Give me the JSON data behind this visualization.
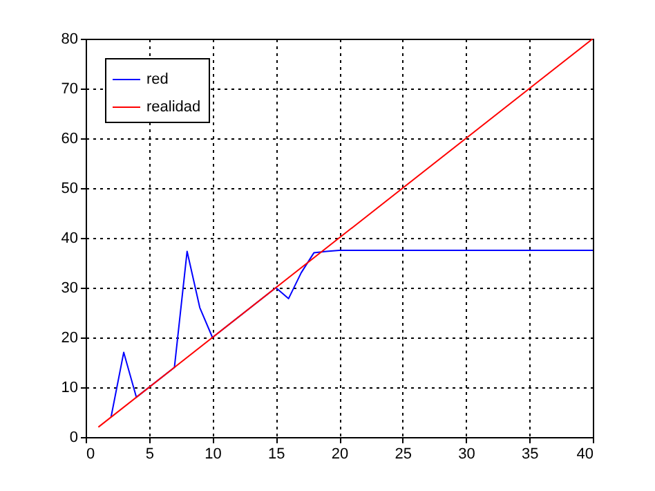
{
  "chart_data": {
    "type": "line",
    "xlim": [
      0,
      40
    ],
    "ylim": [
      0,
      80
    ],
    "xticks": [
      0,
      5,
      10,
      15,
      20,
      25,
      30,
      35,
      40
    ],
    "yticks": [
      0,
      10,
      20,
      30,
      40,
      50,
      60,
      70,
      80
    ],
    "grid": true,
    "legend": "top left",
    "series": [
      {
        "name": "red",
        "color": "#0000ff",
        "x": [
          2,
          3,
          4,
          7,
          8,
          9,
          10,
          15,
          16,
          17,
          18,
          19,
          20,
          40
        ],
        "values": [
          4,
          17,
          8,
          14,
          37.3,
          26,
          20,
          30,
          27.8,
          33,
          37,
          37.3,
          37.5,
          37.5
        ]
      },
      {
        "name": "realidad",
        "color": "#ff0000",
        "x": [
          1,
          40
        ],
        "values": [
          2,
          80
        ]
      }
    ]
  }
}
